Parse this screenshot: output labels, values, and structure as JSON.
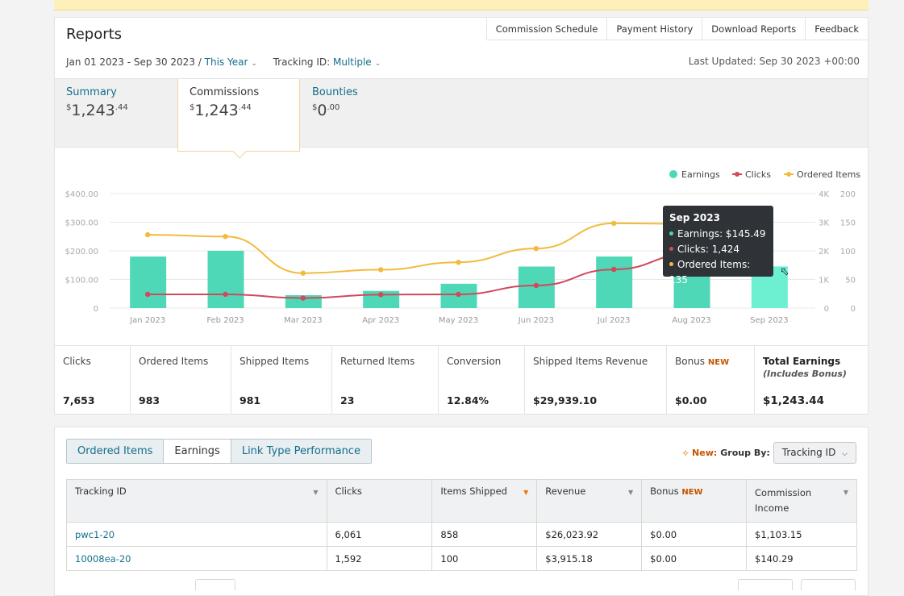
{
  "reports": {
    "title": "Reports",
    "top_links": [
      "Commission Schedule",
      "Payment History",
      "Download Reports",
      "Feedback"
    ],
    "date_range": "Jan 01 2023 - Sep 30 2023 /",
    "period": "This Year",
    "tracking_label": "Tracking ID:",
    "tracking_value": "Multiple",
    "last_updated": "Last Updated: Sep 30 2023 +00:00"
  },
  "metric_tabs": [
    {
      "label": "Summary",
      "dollars": "1,243",
      "cents": ".44"
    },
    {
      "label": "Commissions",
      "dollars": "1,243",
      "cents": ".44"
    },
    {
      "label": "Bounties",
      "dollars": "0",
      "cents": ".00"
    }
  ],
  "currency_symbol": "$",
  "chart_data": {
    "type": "bar",
    "categories": [
      "Jan 2023",
      "Feb 2023",
      "Mar 2023",
      "Apr 2023",
      "May 2023",
      "Jun 2023",
      "Jul 2023",
      "Aug 2023",
      "Sep 2023"
    ],
    "series": [
      {
        "name": "Earnings",
        "type": "bar",
        "axis": "left",
        "color": "#4fd8b8",
        "values": [
          180,
          200,
          45,
          60,
          85,
          145,
          180,
          150,
          145.49
        ]
      },
      {
        "name": "Clicks",
        "type": "line",
        "axis": "right-outer",
        "color": "#d04a5a",
        "values": [
          480,
          480,
          350,
          470,
          480,
          790,
          1350,
          1900,
          1424
        ]
      },
      {
        "name": "Ordered Items",
        "type": "line",
        "axis": "right-inner",
        "color": "#f2bb3c",
        "values": [
          128,
          125,
          61,
          67,
          80,
          104,
          148,
          147,
          135
        ]
      }
    ],
    "y_left_ticks": [
      "$400.00",
      "$300.00",
      "$200.00",
      "$100.00",
      "0"
    ],
    "y_right_outer_ticks": [
      "4K",
      "3K",
      "2K",
      "1K",
      "0"
    ],
    "y_right_inner_ticks": [
      "200",
      "150",
      "100",
      "50",
      "0"
    ],
    "ylim_left": [
      0,
      400
    ],
    "ylim_right_outer": [
      0,
      4000
    ],
    "ylim_right_inner": [
      0,
      200
    ],
    "legend_position": "top-right",
    "grid": true
  },
  "tooltip": {
    "title": "Sep 2023",
    "earnings": "Earnings: $145.49",
    "clicks": "Clicks: 1,424",
    "ordered": "Ordered Items: 135"
  },
  "stats": [
    {
      "label": "Clicks",
      "value": "7,653"
    },
    {
      "label": "Ordered Items",
      "value": "983"
    },
    {
      "label": "Shipped Items",
      "value": "981"
    },
    {
      "label": "Returned Items",
      "value": "23"
    },
    {
      "label": "Conversion",
      "value": "12.84%"
    },
    {
      "label": "Shipped Items Revenue",
      "value": "$29,939.10"
    },
    {
      "label": "Bonus",
      "badge": "NEW",
      "value": "$0.00"
    },
    {
      "label": "Total Earnings",
      "sub": "(Includes Bonus)",
      "value": "$1,243.44"
    }
  ],
  "table_section": {
    "tabs": [
      "Ordered Items",
      "Earnings",
      "Link Type Performance"
    ],
    "group_new": "New:",
    "group_by": "Group By:",
    "group_value": "Tracking ID",
    "headers": [
      "Tracking ID",
      "Clicks",
      "Items Shipped",
      "Revenue",
      "Bonus",
      "Commission Income"
    ],
    "header_badge": "NEW",
    "rows": [
      [
        "pwc1-20",
        "6,061",
        "858",
        "$26,023.92",
        "$0.00",
        "$1,103.15"
      ],
      [
        "10008ea-20",
        "1,592",
        "100",
        "$3,915.18",
        "$0.00",
        "$140.29"
      ]
    ]
  }
}
